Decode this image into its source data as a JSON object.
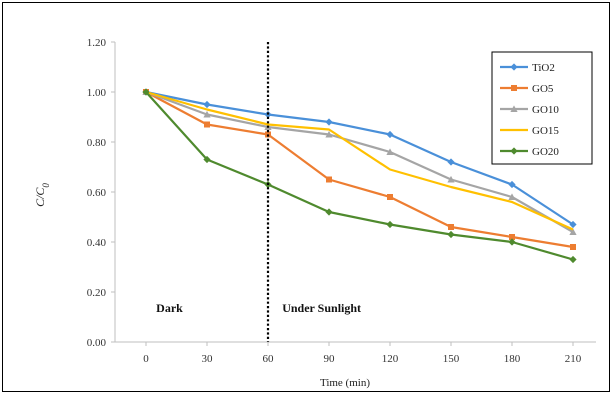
{
  "chart_data": {
    "type": "line",
    "title": "",
    "xlabel": "Time (min)",
    "ylabel": "C/C",
    "ylabel_subscript": "0",
    "x": [
      0,
      30,
      60,
      90,
      120,
      150,
      180,
      210
    ],
    "x_tick_labels": [
      "0",
      "30",
      "60",
      "90",
      "120",
      "150",
      "180",
      "210"
    ],
    "y_tick_labels": [
      "0.00",
      "0.20",
      "0.40",
      "0.60",
      "0.80",
      "1.00",
      "1.20"
    ],
    "ylim": [
      0,
      1.2
    ],
    "grid": false,
    "legend_position": "top-right",
    "annotations": [
      {
        "text": "Dark",
        "x": 5,
        "y": 0.12
      },
      {
        "text": "Under Sunlight",
        "x": 67,
        "y": 0.12
      }
    ],
    "divider": {
      "x": 60,
      "style": "dotted"
    },
    "series": [
      {
        "name": "TiO2",
        "color": "#4a90d9",
        "marker": "diamond",
        "values": [
          1.0,
          0.95,
          0.91,
          0.88,
          0.83,
          0.72,
          0.63,
          0.47
        ]
      },
      {
        "name": "GO5",
        "color": "#ed7d31",
        "marker": "square",
        "values": [
          1.0,
          0.87,
          0.83,
          0.65,
          0.58,
          0.46,
          0.42,
          0.38
        ]
      },
      {
        "name": "GO10",
        "color": "#a5a5a5",
        "marker": "triangle",
        "values": [
          1.0,
          0.91,
          0.86,
          0.83,
          0.76,
          0.65,
          0.58,
          0.44
        ]
      },
      {
        "name": "GO15",
        "color": "#ffc000",
        "marker": "none",
        "values": [
          1.0,
          0.93,
          0.87,
          0.85,
          0.69,
          0.62,
          0.56,
          0.45
        ]
      },
      {
        "name": "GO20",
        "color": "#4f8a2e",
        "marker": "diamond",
        "values": [
          1.0,
          0.73,
          0.63,
          0.52,
          0.47,
          0.43,
          0.4,
          0.33
        ]
      }
    ]
  }
}
